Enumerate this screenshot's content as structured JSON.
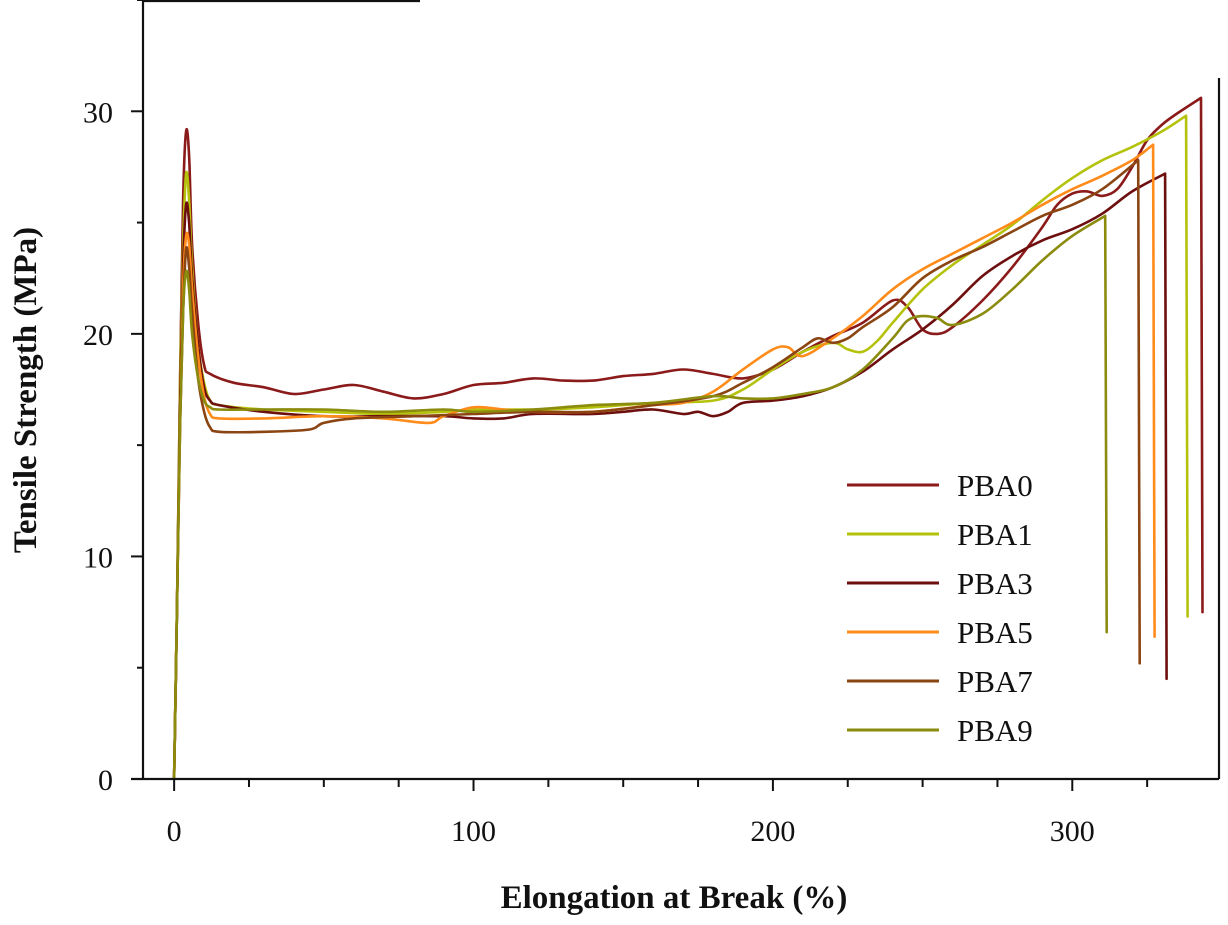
{
  "chart_data": {
    "type": "line",
    "title": "",
    "xlabel": "Elongation at Break (%)",
    "ylabel": "Tensile Strength (MPa)",
    "xlim": [
      -10.4,
      349
    ],
    "ylim": [
      0,
      35
    ],
    "x_ticks": [
      0,
      100,
      200,
      300
    ],
    "x_tick_labels": [
      "0",
      "100",
      "200",
      "300"
    ],
    "x_minor_step": 25,
    "y_ticks": [
      0,
      10,
      20,
      30
    ],
    "y_tick_labels": [
      "0",
      "10",
      "20",
      "30"
    ],
    "y_minor_step": 5,
    "grid": false,
    "legend_position": "lower-right",
    "series": [
      {
        "name": "PBA0",
        "color": "#8b1a1a",
        "points": [
          [
            0,
            0
          ],
          [
            1,
            8
          ],
          [
            2,
            18
          ],
          [
            3,
            26
          ],
          [
            4,
            29.1
          ],
          [
            5,
            28
          ],
          [
            6,
            24
          ],
          [
            8,
            20.5
          ],
          [
            10,
            18.6
          ],
          [
            12,
            18.2
          ],
          [
            20,
            17.8
          ],
          [
            30,
            17.6
          ],
          [
            40,
            17.3
          ],
          [
            50,
            17.5
          ],
          [
            60,
            17.7
          ],
          [
            70,
            17.4
          ],
          [
            80,
            17.1
          ],
          [
            90,
            17.3
          ],
          [
            100,
            17.7
          ],
          [
            110,
            17.8
          ],
          [
            120,
            18.0
          ],
          [
            130,
            17.9
          ],
          [
            140,
            17.9
          ],
          [
            150,
            18.1
          ],
          [
            160,
            18.2
          ],
          [
            170,
            18.4
          ],
          [
            180,
            18.2
          ],
          [
            190,
            18.0
          ],
          [
            200,
            18.4
          ],
          [
            210,
            19.2
          ],
          [
            220,
            19.9
          ],
          [
            230,
            20.5
          ],
          [
            240,
            21.5
          ],
          [
            245,
            21.2
          ],
          [
            250,
            20.2
          ],
          [
            255,
            20.0
          ],
          [
            260,
            20.3
          ],
          [
            270,
            21.5
          ],
          [
            280,
            23.0
          ],
          [
            290,
            24.8
          ],
          [
            295,
            25.8
          ],
          [
            300,
            26.3
          ],
          [
            305,
            26.4
          ],
          [
            310,
            26.2
          ],
          [
            315,
            26.5
          ],
          [
            320,
            27.5
          ],
          [
            325,
            28.7
          ],
          [
            330,
            29.4
          ],
          [
            335,
            29.9
          ],
          [
            343,
            30.6
          ],
          [
            343.5,
            7.5
          ]
        ]
      },
      {
        "name": "PBA1",
        "color": "#b5c20c",
        "points": [
          [
            0,
            0
          ],
          [
            1,
            8
          ],
          [
            2,
            18
          ],
          [
            3,
            24
          ],
          [
            4,
            27.2
          ],
          [
            5,
            26
          ],
          [
            6,
            23
          ],
          [
            8,
            19.5
          ],
          [
            10,
            17.8
          ],
          [
            12,
            17.0
          ],
          [
            15,
            16.8
          ],
          [
            30,
            16.6
          ],
          [
            50,
            16.5
          ],
          [
            70,
            16.4
          ],
          [
            90,
            16.5
          ],
          [
            100,
            16.6
          ],
          [
            120,
            16.6
          ],
          [
            140,
            16.7
          ],
          [
            160,
            16.9
          ],
          [
            180,
            17.0
          ],
          [
            190,
            17.5
          ],
          [
            200,
            18.4
          ],
          [
            210,
            19.2
          ],
          [
            220,
            19.6
          ],
          [
            225,
            19.3
          ],
          [
            230,
            19.2
          ],
          [
            235,
            19.7
          ],
          [
            240,
            20.5
          ],
          [
            250,
            22.0
          ],
          [
            260,
            23.1
          ],
          [
            270,
            24.0
          ],
          [
            280,
            24.9
          ],
          [
            290,
            26.0
          ],
          [
            300,
            27.0
          ],
          [
            310,
            27.8
          ],
          [
            320,
            28.4
          ],
          [
            330,
            29.1
          ],
          [
            338,
            29.8
          ],
          [
            338.5,
            7.3
          ]
        ]
      },
      {
        "name": "PBA3",
        "color": "#6e0f0f",
        "points": [
          [
            0,
            0
          ],
          [
            1,
            8
          ],
          [
            2,
            17
          ],
          [
            3,
            23
          ],
          [
            4,
            25.8
          ],
          [
            5,
            25
          ],
          [
            6,
            22.5
          ],
          [
            8,
            19.5
          ],
          [
            10,
            17.6
          ],
          [
            12,
            17.0
          ],
          [
            15,
            16.8
          ],
          [
            30,
            16.5
          ],
          [
            50,
            16.3
          ],
          [
            70,
            16.3
          ],
          [
            90,
            16.3
          ],
          [
            100,
            16.2
          ],
          [
            110,
            16.2
          ],
          [
            120,
            16.4
          ],
          [
            140,
            16.4
          ],
          [
            150,
            16.5
          ],
          [
            160,
            16.6
          ],
          [
            170,
            16.4
          ],
          [
            175,
            16.5
          ],
          [
            180,
            16.3
          ],
          [
            185,
            16.5
          ],
          [
            190,
            16.9
          ],
          [
            200,
            17.0
          ],
          [
            210,
            17.2
          ],
          [
            220,
            17.6
          ],
          [
            230,
            18.3
          ],
          [
            240,
            19.3
          ],
          [
            250,
            20.2
          ],
          [
            260,
            21.3
          ],
          [
            270,
            22.6
          ],
          [
            280,
            23.5
          ],
          [
            290,
            24.2
          ],
          [
            300,
            24.7
          ],
          [
            310,
            25.4
          ],
          [
            320,
            26.4
          ],
          [
            331,
            27.2
          ],
          [
            331.5,
            4.5
          ]
        ]
      },
      {
        "name": "PBA5",
        "color": "#ff8c1a",
        "points": [
          [
            0,
            0
          ],
          [
            1,
            8
          ],
          [
            2,
            16
          ],
          [
            3,
            22
          ],
          [
            4,
            24.4
          ],
          [
            5,
            24
          ],
          [
            6,
            22
          ],
          [
            8,
            19.0
          ],
          [
            10,
            17.2
          ],
          [
            12,
            16.4
          ],
          [
            15,
            16.2
          ],
          [
            30,
            16.2
          ],
          [
            50,
            16.3
          ],
          [
            70,
            16.2
          ],
          [
            85,
            16.0
          ],
          [
            90,
            16.3
          ],
          [
            100,
            16.7
          ],
          [
            110,
            16.6
          ],
          [
            120,
            16.5
          ],
          [
            140,
            16.5
          ],
          [
            160,
            16.8
          ],
          [
            170,
            16.9
          ],
          [
            180,
            17.4
          ],
          [
            190,
            18.4
          ],
          [
            200,
            19.3
          ],
          [
            205,
            19.4
          ],
          [
            210,
            19.0
          ],
          [
            220,
            19.8
          ],
          [
            230,
            20.8
          ],
          [
            240,
            22.0
          ],
          [
            250,
            22.9
          ],
          [
            260,
            23.6
          ],
          [
            270,
            24.3
          ],
          [
            280,
            25.0
          ],
          [
            290,
            25.8
          ],
          [
            300,
            26.5
          ],
          [
            310,
            27.1
          ],
          [
            320,
            27.8
          ],
          [
            327,
            28.5
          ],
          [
            327.5,
            6.4
          ]
        ]
      },
      {
        "name": "PBA7",
        "color": "#8b4513",
        "points": [
          [
            0,
            0
          ],
          [
            1,
            8
          ],
          [
            2,
            16
          ],
          [
            3,
            21
          ],
          [
            4,
            23.8
          ],
          [
            5,
            23
          ],
          [
            6,
            21
          ],
          [
            8,
            18.0
          ],
          [
            10,
            16.5
          ],
          [
            12,
            15.8
          ],
          [
            15,
            15.6
          ],
          [
            30,
            15.6
          ],
          [
            45,
            15.7
          ],
          [
            50,
            16.0
          ],
          [
            60,
            16.2
          ],
          [
            80,
            16.3
          ],
          [
            100,
            16.4
          ],
          [
            120,
            16.5
          ],
          [
            140,
            16.5
          ],
          [
            160,
            16.8
          ],
          [
            180,
            17.2
          ],
          [
            190,
            17.8
          ],
          [
            200,
            18.5
          ],
          [
            210,
            19.4
          ],
          [
            215,
            19.8
          ],
          [
            220,
            19.6
          ],
          [
            225,
            19.8
          ],
          [
            230,
            20.3
          ],
          [
            240,
            21.2
          ],
          [
            250,
            22.5
          ],
          [
            260,
            23.3
          ],
          [
            270,
            23.9
          ],
          [
            280,
            24.6
          ],
          [
            290,
            25.3
          ],
          [
            300,
            25.8
          ],
          [
            310,
            26.5
          ],
          [
            322,
            27.8
          ],
          [
            322.5,
            5.2
          ]
        ]
      },
      {
        "name": "PBA9",
        "color": "#8b8b0e",
        "points": [
          [
            0,
            0
          ],
          [
            1,
            8
          ],
          [
            2,
            16
          ],
          [
            3,
            21
          ],
          [
            4,
            22.8
          ],
          [
            5,
            22
          ],
          [
            6,
            20
          ],
          [
            8,
            18.0
          ],
          [
            10,
            17.0
          ],
          [
            12,
            16.7
          ],
          [
            15,
            16.6
          ],
          [
            30,
            16.6
          ],
          [
            50,
            16.6
          ],
          [
            70,
            16.5
          ],
          [
            90,
            16.6
          ],
          [
            100,
            16.5
          ],
          [
            120,
            16.6
          ],
          [
            140,
            16.8
          ],
          [
            160,
            16.9
          ],
          [
            180,
            17.2
          ],
          [
            190,
            17.1
          ],
          [
            200,
            17.1
          ],
          [
            210,
            17.3
          ],
          [
            220,
            17.6
          ],
          [
            230,
            18.4
          ],
          [
            240,
            19.8
          ],
          [
            245,
            20.6
          ],
          [
            250,
            20.8
          ],
          [
            255,
            20.7
          ],
          [
            260,
            20.4
          ],
          [
            270,
            20.9
          ],
          [
            280,
            22.0
          ],
          [
            290,
            23.3
          ],
          [
            300,
            24.4
          ],
          [
            311,
            25.3
          ],
          [
            311.5,
            6.6
          ]
        ]
      }
    ]
  }
}
